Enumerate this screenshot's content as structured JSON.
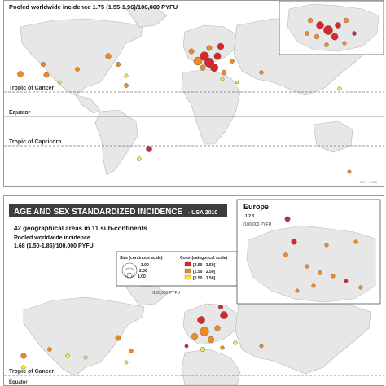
{
  "top_panel": {
    "pooled_text": "Pooled worldwide incidence 1.75 (1.55-1.96)/100,000 PYFU",
    "tropic_cancer": "Tropic of Cancer",
    "equator": "Equator",
    "tropic_capricorn": "Tropic of Capricorn",
    "credit": "IENT - 2015"
  },
  "bottom_panel": {
    "header_title": "AGE AND SEX  STANDARDIZED INCIDENCE",
    "header_suffix": "- USA 2010",
    "areas_text": "42 geographical areas in 11 sub-continents",
    "pooled_label": "Pooled worldwide incidence",
    "pooled_value": "1.68 (1.50-1.85)/100,000 PYFU",
    "legend": {
      "size_title": "Size (continous scale)",
      "size_values": [
        "3.00",
        "2.00",
        "1.00"
      ],
      "color_title": "Color (categorical scale)",
      "color_items": [
        {
          "label": "[2.50 - 3.50[",
          "color": "#d7262c"
        },
        {
          "label": "[1.50 - 2.50[",
          "color": "#ef8a21"
        },
        {
          "label": "[0.50 - 1.50[",
          "color": "#f3e93a"
        }
      ],
      "unit": "/100,000 PYFU"
    },
    "inset_title": "Europe",
    "inset_scale": "1 2 3",
    "inset_unit": "/100,000 PYFU",
    "tropic_cancer": "Tropic of Cancer",
    "equator": "Equator"
  },
  "colors": {
    "high": "#d7262c",
    "mid": "#ef8a21",
    "low": "#f3e93a",
    "land": "#e7e7e7",
    "header_bg": "#3d3d3d"
  }
}
